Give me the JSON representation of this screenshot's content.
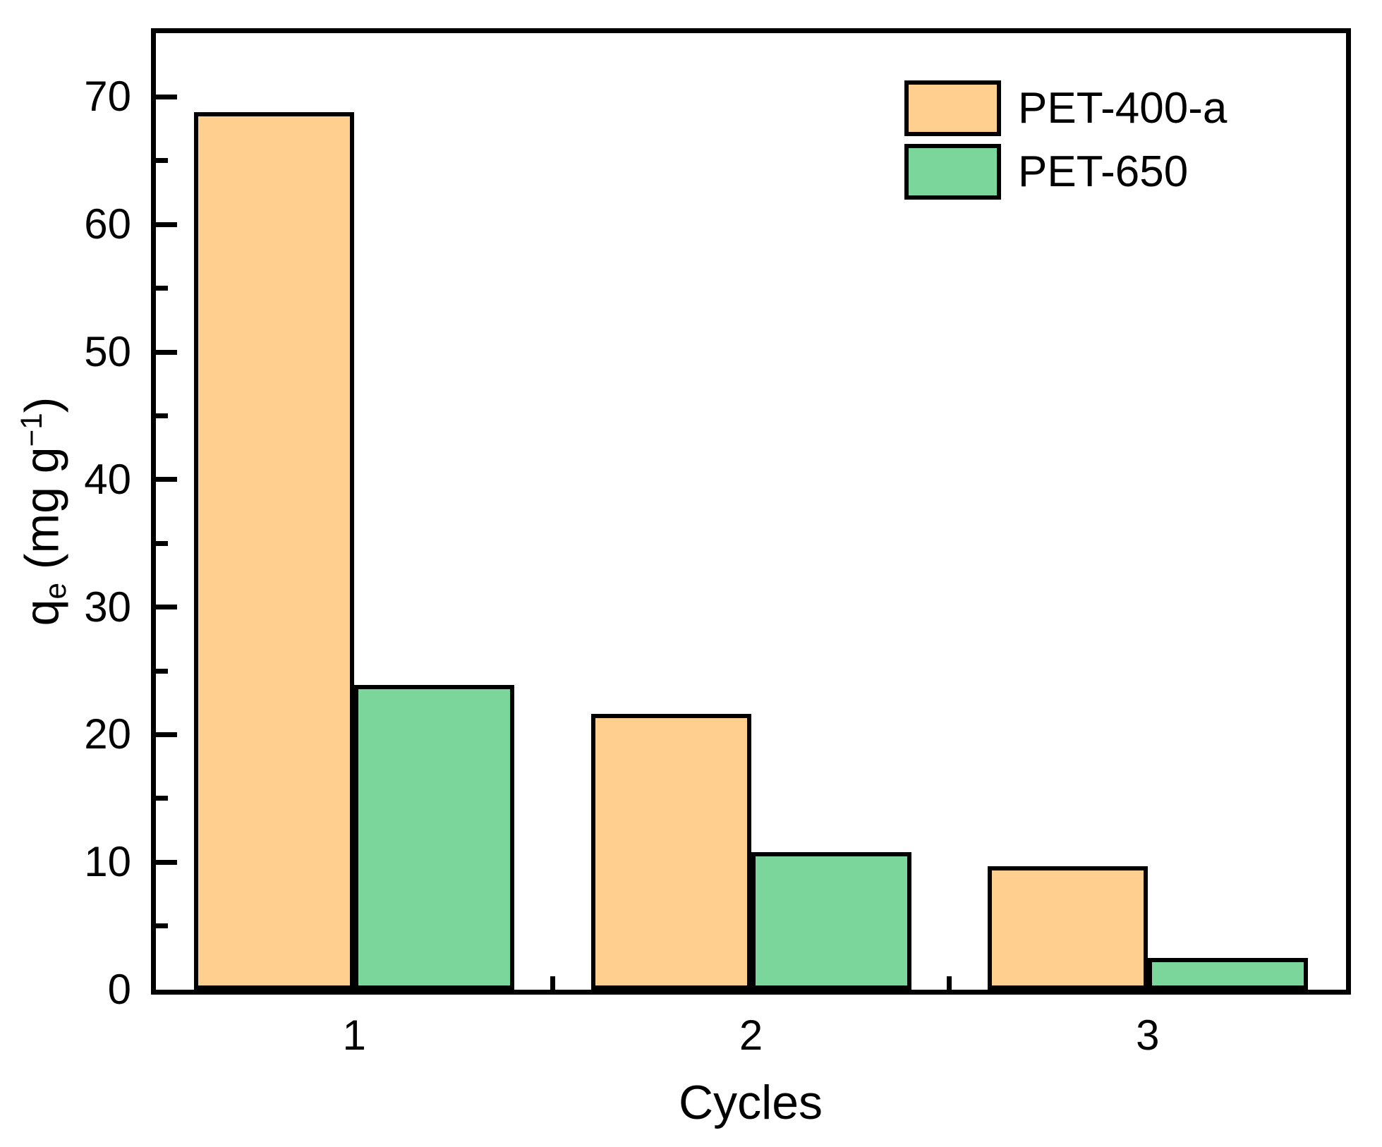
{
  "chart_data": {
    "type": "bar",
    "title": "",
    "xlabel": "Cycles",
    "ylabel": "qe (mg g-1)",
    "ylabel_parts": {
      "prefix": "q",
      "sub": "e",
      "mid": " (mg g",
      "sup": "−1",
      "suffix": ")"
    },
    "categories": [
      "1",
      "2",
      "3"
    ],
    "series": [
      {
        "name": "PET-400-a",
        "color": "#FECF8E",
        "values": [
          68.8,
          21.6,
          9.7
        ]
      },
      {
        "name": "PET-650",
        "color": "#7BD69B",
        "values": [
          23.9,
          10.8,
          2.5
        ]
      }
    ],
    "ylim": [
      0,
      75
    ],
    "ytick_major": 10,
    "ytick_minor": 5,
    "ytick_labels": [
      "0",
      "10",
      "20",
      "30",
      "40",
      "50",
      "60",
      "70"
    ],
    "bar_outline_color": "#000000",
    "axis_color": "#000000",
    "background_color": "#FFFFFF",
    "grid": false,
    "legend_position": "top-right"
  }
}
